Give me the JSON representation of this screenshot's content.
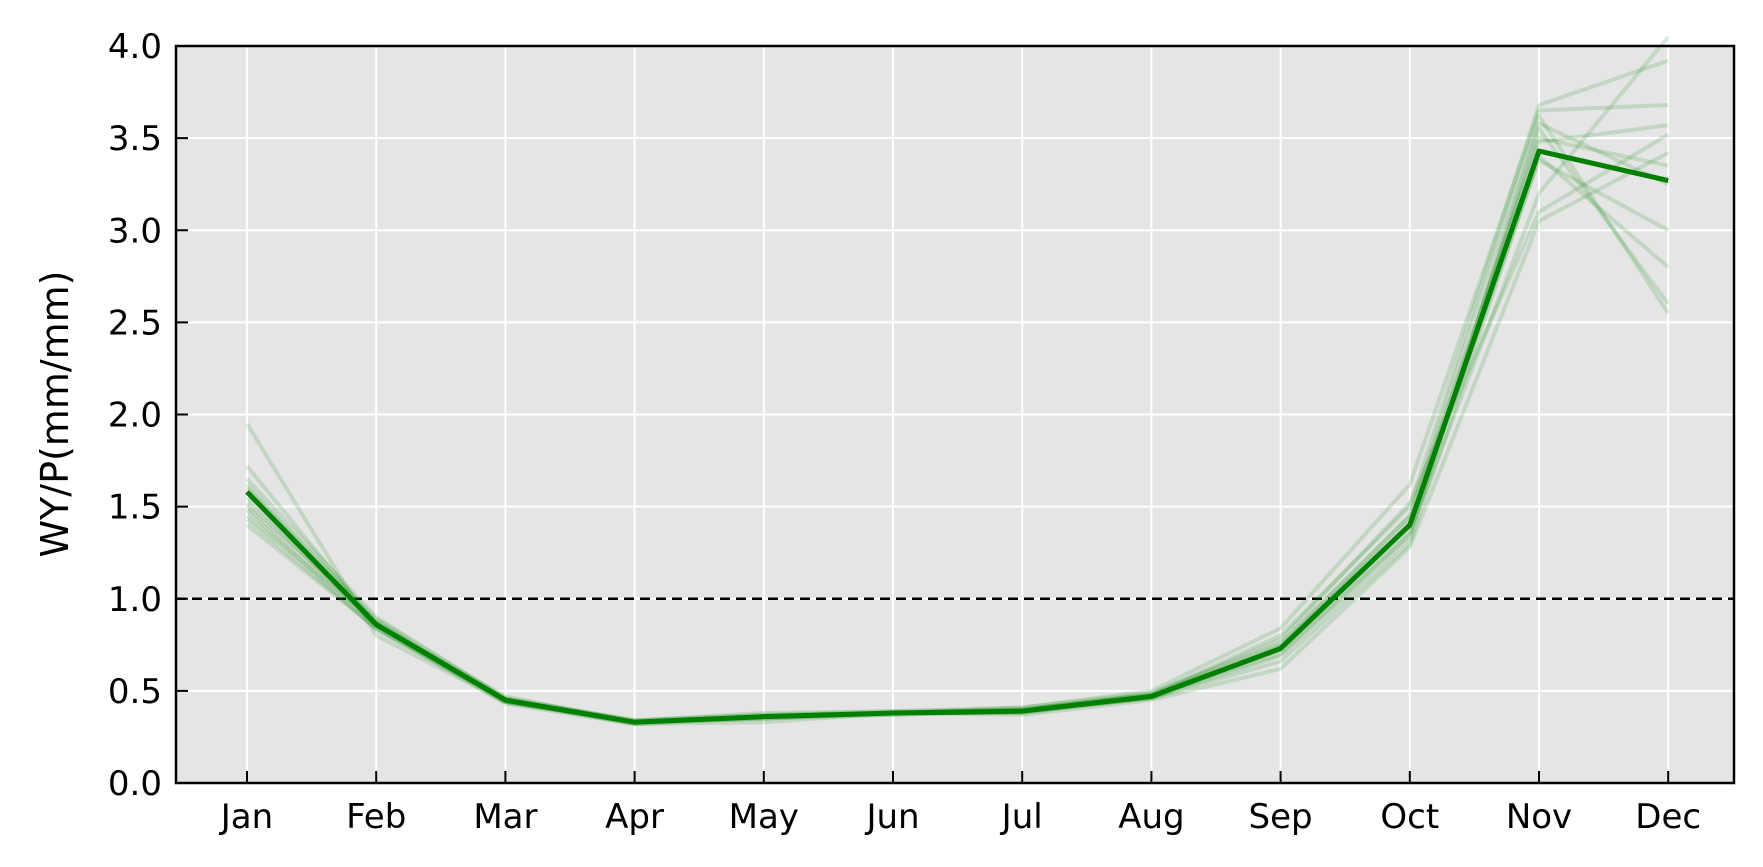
{
  "chart_data": {
    "type": "line",
    "title": "",
    "xlabel": "",
    "ylabel": "WY/P(mm/mm)",
    "categories": [
      "Jan",
      "Feb",
      "Mar",
      "Apr",
      "May",
      "Jun",
      "Jul",
      "Aug",
      "Sep",
      "Oct",
      "Nov",
      "Dec"
    ],
    "ylim": [
      0,
      4
    ],
    "yticks": [
      "0.0",
      "0.5",
      "1.0",
      "1.5",
      "2.0",
      "2.5",
      "3.0",
      "3.5",
      "4.0"
    ],
    "grid": true,
    "reference_line": {
      "y": 1.0,
      "style": "dashed",
      "color": "#000000"
    },
    "series": [
      {
        "role": "mean",
        "color": "#008000",
        "values": [
          1.58,
          0.86,
          0.45,
          0.33,
          0.36,
          0.38,
          0.39,
          0.47,
          0.73,
          1.4,
          3.43,
          3.27
        ]
      }
    ],
    "ensemble": {
      "color": "#008000",
      "opacity": 0.15,
      "members": [
        [
          1.95,
          0.8,
          0.44,
          0.32,
          0.33,
          0.38,
          0.37,
          0.45,
          0.62,
          1.28,
          3.05,
          3.42
        ],
        [
          1.72,
          0.86,
          0.47,
          0.33,
          0.36,
          0.38,
          0.4,
          0.48,
          0.8,
          1.5,
          3.68,
          3.92
        ],
        [
          1.45,
          0.87,
          0.45,
          0.34,
          0.37,
          0.38,
          0.41,
          0.49,
          0.76,
          1.45,
          3.62,
          2.55
        ],
        [
          1.4,
          0.84,
          0.43,
          0.32,
          0.35,
          0.37,
          0.39,
          0.47,
          0.7,
          1.35,
          3.55,
          2.6
        ],
        [
          1.55,
          0.85,
          0.44,
          0.33,
          0.36,
          0.38,
          0.38,
          0.46,
          0.74,
          1.42,
          3.5,
          3.35
        ],
        [
          1.6,
          0.89,
          0.46,
          0.34,
          0.37,
          0.39,
          0.4,
          0.48,
          0.78,
          1.52,
          3.1,
          3.52
        ],
        [
          1.52,
          0.88,
          0.44,
          0.33,
          0.35,
          0.38,
          0.39,
          0.47,
          0.72,
          1.36,
          3.2,
          4.05
        ],
        [
          1.48,
          0.83,
          0.45,
          0.32,
          0.36,
          0.38,
          0.39,
          0.46,
          0.66,
          1.3,
          3.4,
          2.8
        ],
        [
          1.65,
          0.9,
          0.46,
          0.34,
          0.38,
          0.39,
          0.41,
          0.5,
          0.84,
          1.62,
          3.65,
          3.68
        ],
        [
          1.5,
          0.86,
          0.44,
          0.33,
          0.35,
          0.38,
          0.38,
          0.47,
          0.73,
          1.4,
          3.38,
          3.0
        ],
        [
          1.43,
          0.84,
          0.45,
          0.33,
          0.36,
          0.37,
          0.39,
          0.46,
          0.69,
          1.33,
          3.58,
          3.25
        ],
        [
          1.62,
          0.87,
          0.45,
          0.33,
          0.36,
          0.38,
          0.4,
          0.48,
          0.75,
          1.45,
          3.48,
          3.57
        ]
      ]
    }
  }
}
